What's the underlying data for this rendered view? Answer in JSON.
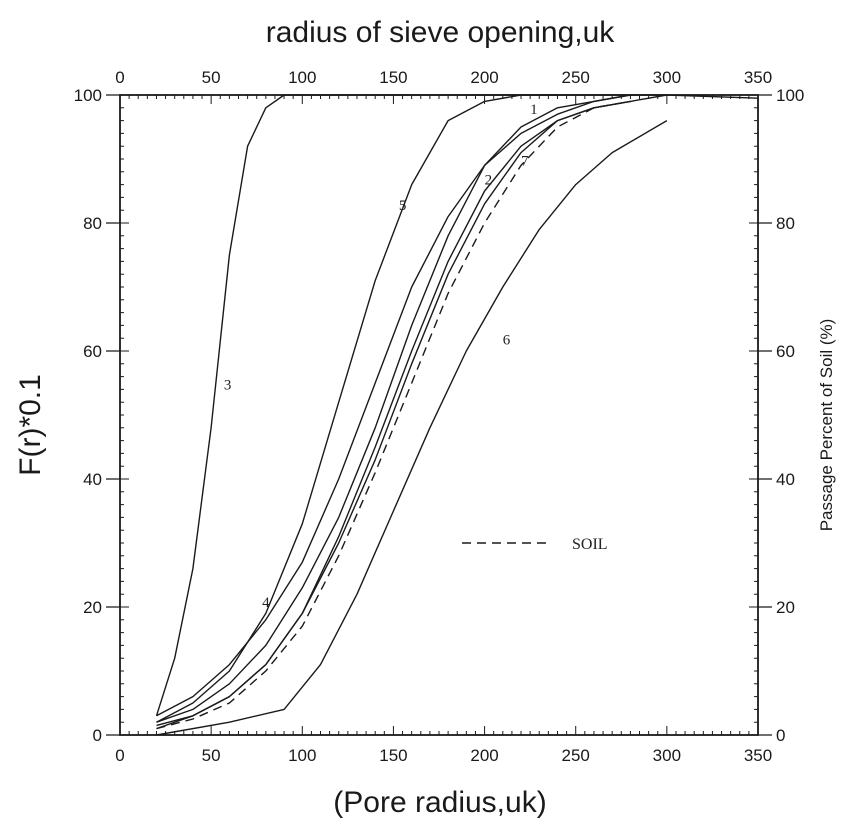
{
  "chart_data": {
    "type": "line",
    "title": "radius of sieve opening,uk",
    "xlabel": "(Pore radius,uk)",
    "ylabel": "F(r)*0.1",
    "y2label": "Passage Percent of Soil (%)",
    "xlim": [
      0,
      350
    ],
    "ylim": [
      0,
      100
    ],
    "x_ticks": [
      0,
      50,
      100,
      150,
      200,
      250,
      300,
      350
    ],
    "y_ticks": [
      0,
      20,
      40,
      60,
      80,
      100
    ],
    "grid": false,
    "series": [
      {
        "name": "1",
        "label_at": [
          225,
          97
        ],
        "dashed": false,
        "x": [
          20,
          40,
          60,
          80,
          100,
          120,
          140,
          160,
          180,
          200,
          220,
          240,
          260,
          280
        ],
        "y": [
          2,
          4,
          8,
          14,
          23,
          34,
          48,
          64,
          78,
          89,
          95,
          98,
          99,
          100
        ]
      },
      {
        "name": "2",
        "label_at": [
          200,
          86
        ],
        "dashed": false,
        "x": [
          20,
          40,
          60,
          80,
          100,
          120,
          140,
          160,
          180,
          200,
          220,
          240,
          260,
          280,
          300
        ],
        "y": [
          1.5,
          3,
          6,
          11,
          19,
          30,
          43,
          58,
          72,
          83,
          91,
          96,
          98,
          99,
          100
        ]
      },
      {
        "name": "3",
        "label_at": [
          57,
          54
        ],
        "dashed": false,
        "x": [
          20,
          30,
          40,
          50,
          60,
          70,
          80,
          90,
          100,
          120,
          150,
          200,
          300,
          350
        ],
        "y": [
          3,
          12,
          26,
          48,
          75,
          92,
          98,
          100,
          100,
          100,
          100,
          100,
          100,
          99.5
        ]
      },
      {
        "name": "4",
        "label_at": [
          78,
          20
        ],
        "dashed": false,
        "x": [
          20,
          40,
          60,
          80,
          100,
          120,
          140,
          160,
          180,
          200,
          220,
          240,
          260,
          280
        ],
        "y": [
          3,
          6,
          11,
          18,
          27,
          40,
          55,
          70,
          81,
          89,
          94,
          97,
          99,
          100
        ]
      },
      {
        "name": "5",
        "label_at": [
          153,
          82
        ],
        "dashed": false,
        "x": [
          20,
          40,
          60,
          80,
          100,
          120,
          140,
          160,
          180,
          200,
          220,
          240
        ],
        "y": [
          2,
          5,
          10,
          19,
          33,
          52,
          71,
          86,
          96,
          99,
          100,
          100
        ]
      },
      {
        "name": "6",
        "label_at": [
          210,
          61
        ],
        "dashed": false,
        "x": [
          20,
          60,
          90,
          110,
          130,
          150,
          170,
          190,
          210,
          230,
          250,
          270,
          300
        ],
        "y": [
          0,
          2,
          4,
          11,
          22,
          35,
          48,
          60,
          70,
          79,
          86,
          91,
          96
        ]
      },
      {
        "name": "7",
        "label_at": [
          220,
          89
        ],
        "dashed": false,
        "x": [
          20,
          40,
          60,
          80,
          100,
          120,
          140,
          160,
          180,
          200,
          220,
          240,
          260,
          280
        ],
        "y": [
          1,
          3,
          6,
          11,
          19,
          31,
          45,
          60,
          74,
          85,
          92,
          96,
          98,
          99
        ]
      },
      {
        "name": "SOIL",
        "legend": true,
        "dashed": true,
        "x": [
          20,
          40,
          60,
          80,
          100,
          120,
          140,
          160,
          180,
          200,
          220,
          240,
          260,
          280
        ],
        "y": [
          1,
          2.5,
          5,
          10,
          17,
          28,
          41,
          55,
          69,
          80,
          89,
          95,
          98,
          99
        ]
      }
    ]
  }
}
